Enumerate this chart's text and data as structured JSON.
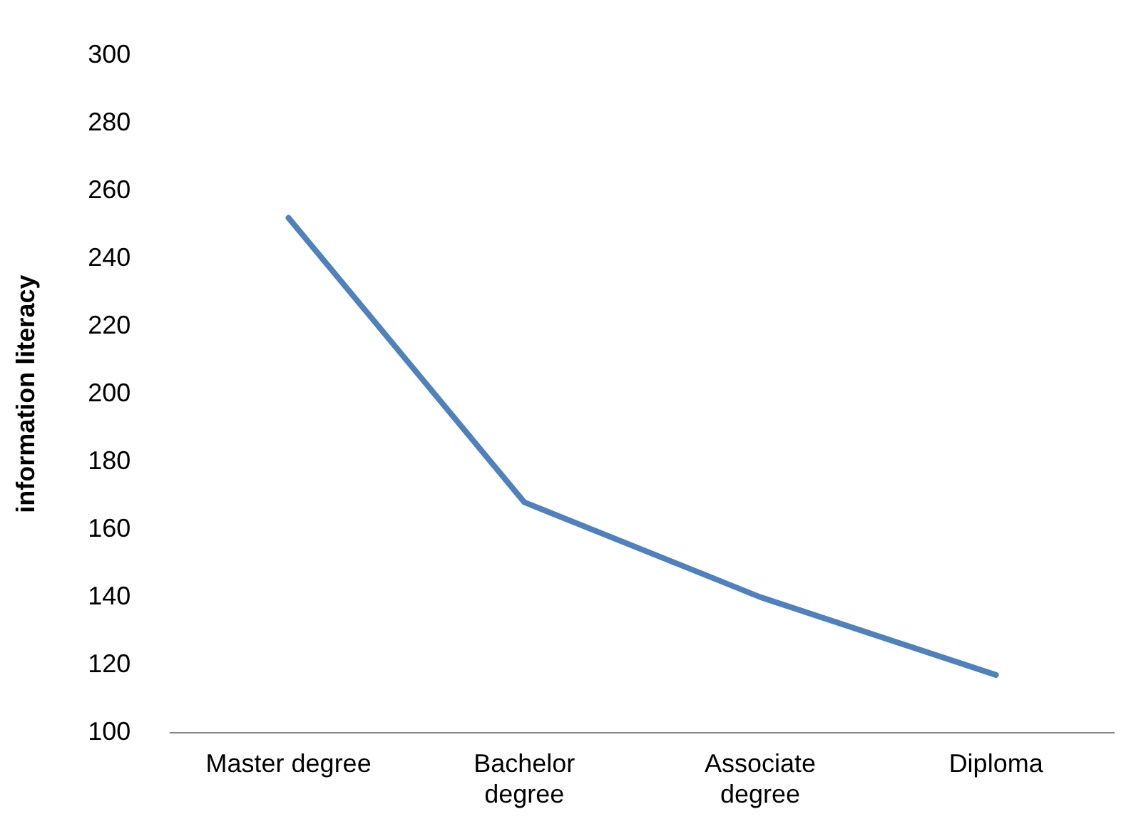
{
  "chart_data": {
    "type": "line",
    "ylabel": "information literacy",
    "categories": [
      "Master degree",
      "Bachelor degree",
      "Associate degree",
      "Diploma"
    ],
    "series": [
      {
        "color": "#4f81bd",
        "values": [
          252,
          168,
          140,
          117
        ]
      }
    ],
    "ylim": [
      100,
      300
    ],
    "yticks": [
      100,
      120,
      140,
      160,
      180,
      200,
      220,
      240,
      260,
      280,
      300
    ],
    "grid": false,
    "legend": false,
    "marker": "none",
    "line_style": "solid"
  }
}
